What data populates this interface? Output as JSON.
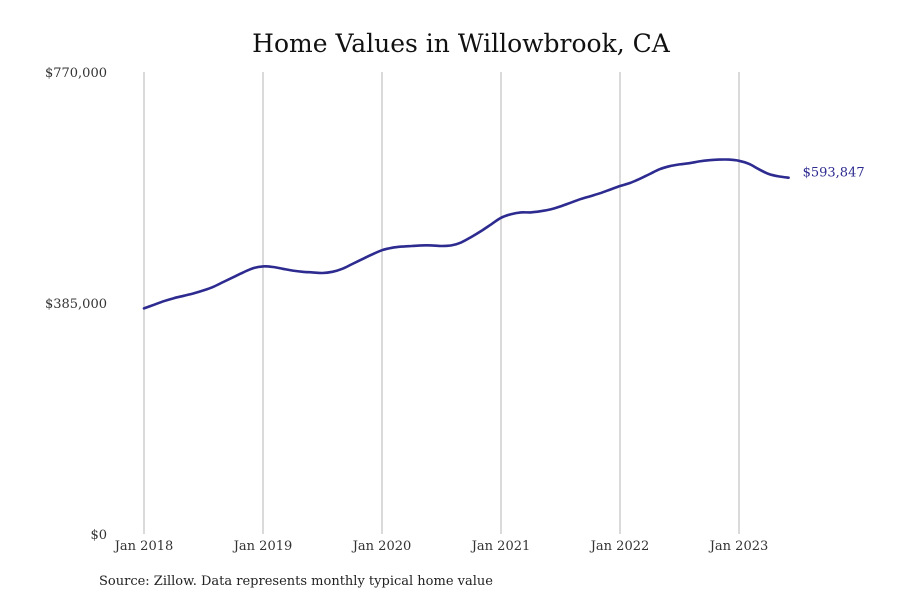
{
  "chart_data": {
    "type": "line",
    "title": "Home Values in Willowbrook, CA",
    "source": "Source: Zillow. Data represents monthly typical home value",
    "y_ticks": [
      {
        "value": 770000,
        "label": "$770,000"
      },
      {
        "value": 385000,
        "label": "$385,000"
      },
      {
        "value": 0,
        "label": "$0"
      }
    ],
    "ylim": [
      0,
      770000
    ],
    "x_ticks": [
      {
        "value": 2018,
        "label": "Jan 2018"
      },
      {
        "value": 2019,
        "label": "Jan 2019"
      },
      {
        "value": 2020,
        "label": "Jan 2020"
      },
      {
        "value": 2021,
        "label": "Jan 2021"
      },
      {
        "value": 2022,
        "label": "Jan 2022"
      },
      {
        "value": 2023,
        "label": "Jan 2023"
      }
    ],
    "xlim": [
      2018,
      2024.25
    ],
    "grid": "vertical",
    "end_label": "$593,847",
    "series": [
      {
        "color": "#2d2b8f",
        "points": [
          {
            "x": "2018-01",
            "y": 376000
          },
          {
            "x": "2018-02",
            "y": 382000
          },
          {
            "x": "2018-03",
            "y": 388000
          },
          {
            "x": "2018-04",
            "y": 393000
          },
          {
            "x": "2018-05",
            "y": 397000
          },
          {
            "x": "2018-06",
            "y": 401000
          },
          {
            "x": "2018-07",
            "y": 406000
          },
          {
            "x": "2018-08",
            "y": 412000
          },
          {
            "x": "2018-09",
            "y": 420000
          },
          {
            "x": "2018-10",
            "y": 428000
          },
          {
            "x": "2018-11",
            "y": 436000
          },
          {
            "x": "2018-12",
            "y": 443000
          },
          {
            "x": "2019-01",
            "y": 446000
          },
          {
            "x": "2019-02",
            "y": 445000
          },
          {
            "x": "2019-03",
            "y": 442000
          },
          {
            "x": "2019-04",
            "y": 439000
          },
          {
            "x": "2019-05",
            "y": 437000
          },
          {
            "x": "2019-06",
            "y": 436000
          },
          {
            "x": "2019-07",
            "y": 435000
          },
          {
            "x": "2019-08",
            "y": 437000
          },
          {
            "x": "2019-09",
            "y": 442000
          },
          {
            "x": "2019-10",
            "y": 450000
          },
          {
            "x": "2019-11",
            "y": 458000
          },
          {
            "x": "2019-12",
            "y": 466000
          },
          {
            "x": "2020-01",
            "y": 473000
          },
          {
            "x": "2020-02",
            "y": 477000
          },
          {
            "x": "2020-03",
            "y": 479000
          },
          {
            "x": "2020-04",
            "y": 480000
          },
          {
            "x": "2020-05",
            "y": 481000
          },
          {
            "x": "2020-06",
            "y": 481000
          },
          {
            "x": "2020-07",
            "y": 480000
          },
          {
            "x": "2020-08",
            "y": 481000
          },
          {
            "x": "2020-09",
            "y": 486000
          },
          {
            "x": "2020-10",
            "y": 495000
          },
          {
            "x": "2020-11",
            "y": 505000
          },
          {
            "x": "2020-12",
            "y": 516000
          },
          {
            "x": "2021-01",
            "y": 527000
          },
          {
            "x": "2021-02",
            "y": 533000
          },
          {
            "x": "2021-03",
            "y": 536000
          },
          {
            "x": "2021-04",
            "y": 536000
          },
          {
            "x": "2021-05",
            "y": 538000
          },
          {
            "x": "2021-06",
            "y": 541000
          },
          {
            "x": "2021-07",
            "y": 546000
          },
          {
            "x": "2021-08",
            "y": 552000
          },
          {
            "x": "2021-09",
            "y": 558000
          },
          {
            "x": "2021-10",
            "y": 563000
          },
          {
            "x": "2021-11",
            "y": 568000
          },
          {
            "x": "2021-12",
            "y": 574000
          },
          {
            "x": "2022-01",
            "y": 580000
          },
          {
            "x": "2022-02",
            "y": 585000
          },
          {
            "x": "2022-03",
            "y": 592000
          },
          {
            "x": "2022-04",
            "y": 600000
          },
          {
            "x": "2022-05",
            "y": 608000
          },
          {
            "x": "2022-06",
            "y": 613000
          },
          {
            "x": "2022-07",
            "y": 616000
          },
          {
            "x": "2022-08",
            "y": 618000
          },
          {
            "x": "2022-09",
            "y": 621000
          },
          {
            "x": "2022-10",
            "y": 623000
          },
          {
            "x": "2022-11",
            "y": 624000
          },
          {
            "x": "2022-12",
            "y": 624000
          },
          {
            "x": "2023-01",
            "y": 622000
          },
          {
            "x": "2023-02",
            "y": 617000
          },
          {
            "x": "2023-03",
            "y": 608000
          },
          {
            "x": "2023-04",
            "y": 600000
          },
          {
            "x": "2023-05",
            "y": 596000
          },
          {
            "x": "2023-06",
            "y": 593847
          }
        ]
      }
    ]
  }
}
